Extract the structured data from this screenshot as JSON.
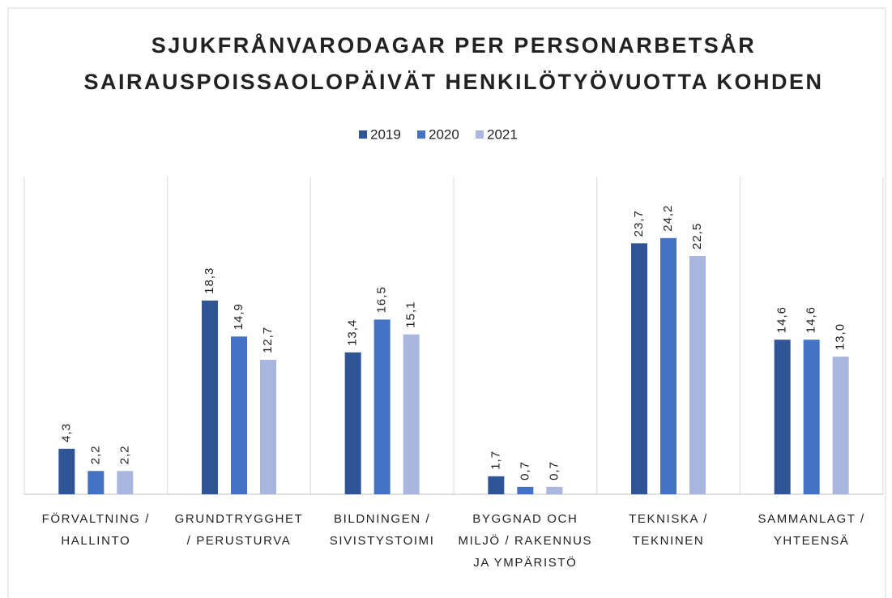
{
  "chart_data": {
    "type": "bar",
    "title": "SJUKFRÅNVARODAGAR PER PERSONARBETSÅR",
    "subtitle": "SAIRAUSPOISSAOLOPÄIVÄT HENKILÖTYÖVUOTTA KOHDEN",
    "categories": [
      "FÖRVALTNING / HALLINTO",
      "GRUNDTRYGGHET / PERUSTURVA",
      "BILDNINGEN / SIVISTYSTOIMI",
      "BYGGNAD OCH MILJÖ / RAKENNUS JA YMPÄRISTÖ",
      "TEKNISKA / TEKNINEN",
      "SAMMANLAGT / YHTEENSÄ"
    ],
    "series": [
      {
        "name": "2019",
        "color": "#2f5597",
        "values": [
          4.3,
          18.3,
          13.4,
          1.7,
          23.7,
          14.6
        ],
        "value_labels": [
          "4,3",
          "18,3",
          "13,4",
          "1,7",
          "23,7",
          "14,6"
        ]
      },
      {
        "name": "2020",
        "color": "#4472c4",
        "values": [
          2.2,
          14.9,
          16.5,
          0.7,
          24.2,
          14.6
        ],
        "value_labels": [
          "2,2",
          "14,9",
          "16,5",
          "0,7",
          "24,2",
          "14,6"
        ]
      },
      {
        "name": "2021",
        "color": "#a9b7de",
        "values": [
          2.2,
          12.7,
          15.1,
          0.7,
          22.5,
          13.0
        ],
        "value_labels": [
          "2,2",
          "12,7",
          "15,1",
          "0,7",
          "22,5",
          "13,0"
        ]
      }
    ],
    "ylim": [
      0,
      30
    ],
    "legend": "top"
  }
}
